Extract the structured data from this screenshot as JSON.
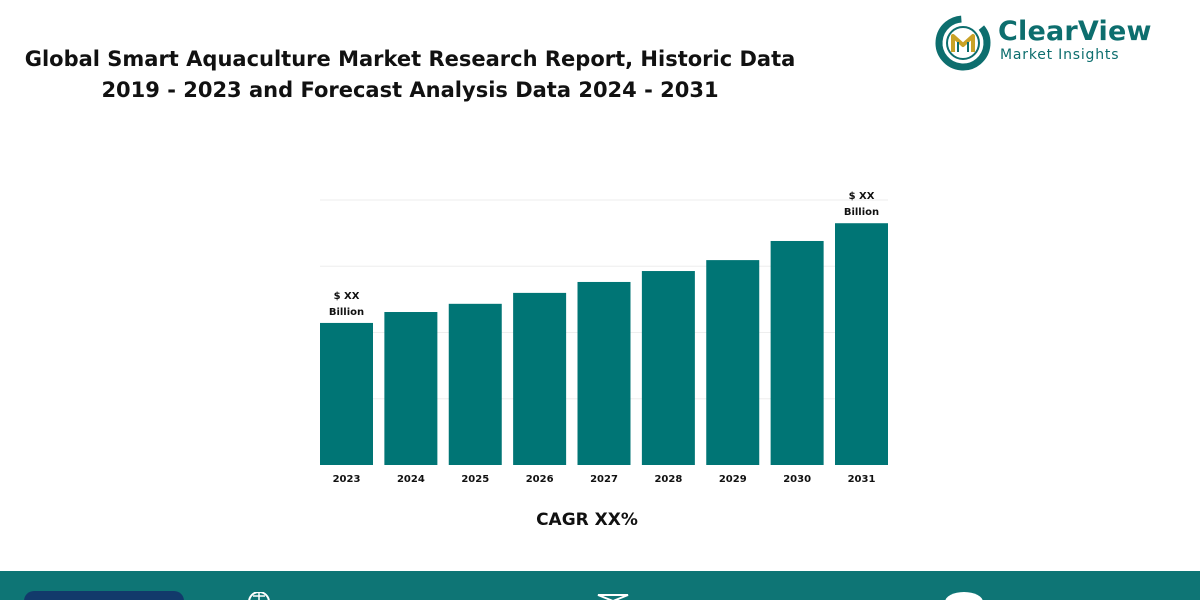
{
  "title": {
    "line1": "Global Smart Aquaculture Market Research Report, Historic Data",
    "line2": "2019 - 2023 and Forecast Analysis Data 2024 - 2031"
  },
  "logo": {
    "name": "ClearView",
    "tagline": "Market Insights",
    "icon": "clearview-logo-mark",
    "colors": {
      "teal": "#0d6e6e",
      "gold": "#c9a227"
    }
  },
  "chart_data": {
    "type": "bar",
    "categories": [
      "2023",
      "2024",
      "2025",
      "2026",
      "2027",
      "2028",
      "2029",
      "2030",
      "2031"
    ],
    "values": [
      52,
      56,
      59,
      63,
      67,
      71,
      75,
      82,
      88.5
    ],
    "ylim": [
      0,
      97
    ],
    "grid": true,
    "bar_color": "#007575",
    "annotations": [
      {
        "category": "2023",
        "lines": [
          "$ XX",
          "Billion"
        ]
      },
      {
        "category": "2031",
        "lines": [
          "$ XX",
          "Billion"
        ]
      }
    ],
    "caption": "CAGR XX%"
  },
  "footer": {
    "background": "#0e7575",
    "icons": [
      "globe-icon",
      "mail-icon",
      "phone-icon"
    ]
  }
}
